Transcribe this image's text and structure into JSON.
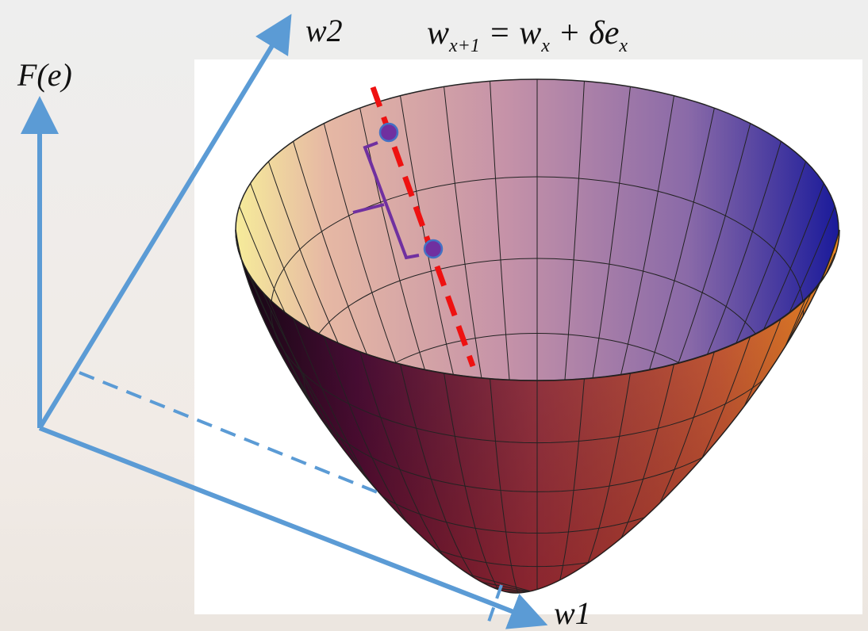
{
  "axes": {
    "f_axis": "F(e)",
    "w2_axis": "w2",
    "w1_axis": "w1"
  },
  "formula": {
    "lhs": "w",
    "lhs_sub": "x+1",
    "rhs1": " = w",
    "rhs1_sub": "x",
    "rhs2": " + δe",
    "rhs2_sub": "x"
  }
}
